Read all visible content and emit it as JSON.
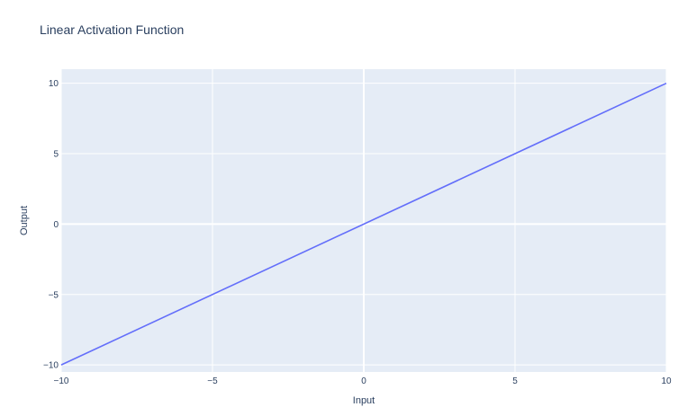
{
  "chart_data": {
    "type": "line",
    "title": "Linear Activation Function",
    "xlabel": "Input",
    "ylabel": "Output",
    "xlim": [
      -10,
      10
    ],
    "ylim": [
      -10.5,
      11
    ],
    "x_ticks": [
      -10,
      -5,
      0,
      5,
      10
    ],
    "y_ticks": [
      -10,
      -5,
      0,
      5,
      10
    ],
    "x_tick_labels": [
      "−10",
      "−5",
      "0",
      "5",
      "10"
    ],
    "y_tick_labels": [
      "−10",
      "−5",
      "0",
      "5",
      "10"
    ],
    "grid": true,
    "zero_lines": true,
    "series": [
      {
        "x": [
          -10,
          10
        ],
        "y": [
          -10,
          10
        ],
        "color": "#636efa"
      }
    ],
    "colors": {
      "plot_background": "#e5ecf6",
      "grid": "#ffffff",
      "zero_line": "#ffffff",
      "text": "#2a3f5f"
    }
  }
}
